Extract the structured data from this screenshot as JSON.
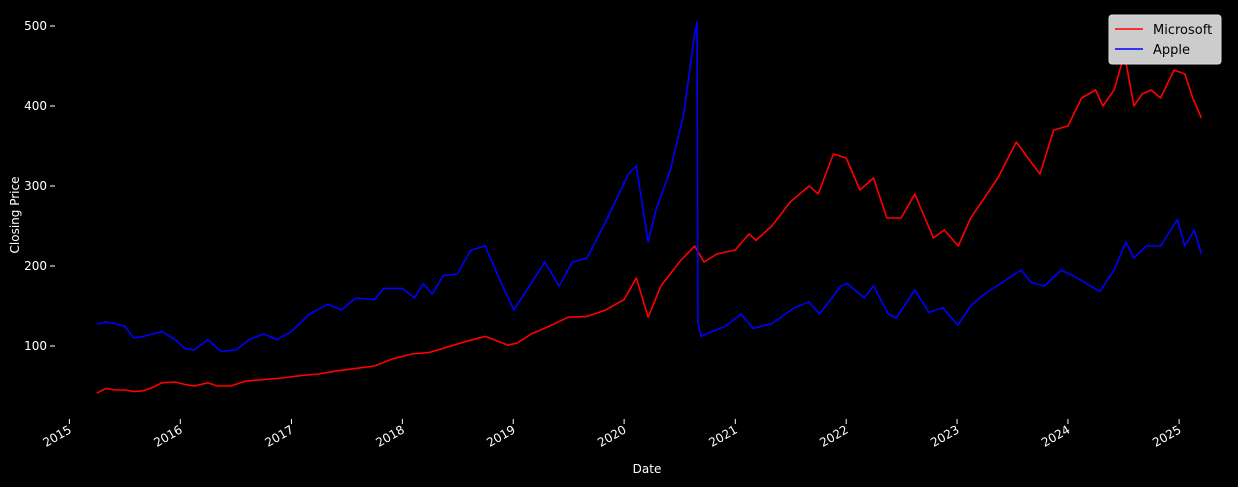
{
  "chart_data": {
    "type": "line",
    "xlabel": "Date",
    "ylabel": "Closing Price",
    "x_ticks": [
      "2015",
      "2016",
      "2017",
      "2018",
      "2019",
      "2020",
      "2021",
      "2022",
      "2023",
      "2024",
      "2025"
    ],
    "y_ticks": [
      100,
      200,
      300,
      400,
      500
    ],
    "ylim": [
      20,
      520
    ],
    "xlim": [
      "2014-12-01",
      "2025-06-01"
    ],
    "grid": false,
    "legend_position": "top-right",
    "background": "#000000",
    "series": [
      {
        "name": "Microsoft",
        "color": "#ff0000",
        "points": [
          [
            "2015-04-01",
            41
          ],
          [
            "2015-05-01",
            47
          ],
          [
            "2015-06-01",
            45
          ],
          [
            "2015-07-01",
            45
          ],
          [
            "2015-08-01",
            43
          ],
          [
            "2015-09-01",
            44
          ],
          [
            "2015-10-01",
            48
          ],
          [
            "2015-11-01",
            54
          ],
          [
            "2015-12-15",
            55
          ],
          [
            "2016-01-15",
            52
          ],
          [
            "2016-02-15",
            50
          ],
          [
            "2016-04-01",
            54
          ],
          [
            "2016-05-01",
            50
          ],
          [
            "2016-06-15",
            50
          ],
          [
            "2016-08-01",
            56
          ],
          [
            "2016-10-01",
            58
          ],
          [
            "2016-12-01",
            60
          ],
          [
            "2017-02-01",
            63
          ],
          [
            "2017-04-01",
            65
          ],
          [
            "2017-06-01",
            69
          ],
          [
            "2017-08-01",
            72
          ],
          [
            "2017-10-01",
            75
          ],
          [
            "2017-12-01",
            84
          ],
          [
            "2018-02-01",
            90
          ],
          [
            "2018-04-01",
            92
          ],
          [
            "2018-06-01",
            99
          ],
          [
            "2018-08-01",
            106
          ],
          [
            "2018-10-01",
            112
          ],
          [
            "2018-12-15",
            101
          ],
          [
            "2019-01-15",
            104
          ],
          [
            "2019-03-01",
            115
          ],
          [
            "2019-05-01",
            125
          ],
          [
            "2019-07-01",
            136
          ],
          [
            "2019-09-01",
            137
          ],
          [
            "2019-11-01",
            145
          ],
          [
            "2020-01-01",
            158
          ],
          [
            "2020-02-10",
            185
          ],
          [
            "2020-03-20",
            136
          ],
          [
            "2020-05-01",
            175
          ],
          [
            "2020-07-01",
            205
          ],
          [
            "2020-08-20",
            225
          ],
          [
            "2020-09-20",
            205
          ],
          [
            "2020-11-01",
            215
          ],
          [
            "2021-01-01",
            220
          ],
          [
            "2021-02-15",
            240
          ],
          [
            "2021-03-10",
            232
          ],
          [
            "2021-05-01",
            250
          ],
          [
            "2021-07-01",
            280
          ],
          [
            "2021-09-01",
            300
          ],
          [
            "2021-10-01",
            290
          ],
          [
            "2021-11-20",
            340
          ],
          [
            "2022-01-01",
            335
          ],
          [
            "2022-02-15",
            295
          ],
          [
            "2022-04-01",
            310
          ],
          [
            "2022-05-15",
            260
          ],
          [
            "2022-07-01",
            260
          ],
          [
            "2022-08-15",
            290
          ],
          [
            "2022-10-15",
            235
          ],
          [
            "2022-11-20",
            245
          ],
          [
            "2023-01-05",
            225
          ],
          [
            "2023-02-15",
            260
          ],
          [
            "2023-04-01",
            285
          ],
          [
            "2023-05-15",
            310
          ],
          [
            "2023-07-15",
            355
          ],
          [
            "2023-09-01",
            330
          ],
          [
            "2023-10-01",
            315
          ],
          [
            "2023-11-15",
            370
          ],
          [
            "2024-01-01",
            375
          ],
          [
            "2024-02-15",
            410
          ],
          [
            "2024-04-01",
            420
          ],
          [
            "2024-04-25",
            400
          ],
          [
            "2024-06-01",
            420
          ],
          [
            "2024-07-05",
            465
          ],
          [
            "2024-08-05",
            400
          ],
          [
            "2024-09-01",
            415
          ],
          [
            "2024-10-01",
            420
          ],
          [
            "2024-11-01",
            410
          ],
          [
            "2024-12-15",
            445
          ],
          [
            "2025-01-20",
            440
          ],
          [
            "2025-02-15",
            410
          ],
          [
            "2025-03-15",
            385
          ]
        ]
      },
      {
        "name": "Apple",
        "color": "#0000ff",
        "points": [
          [
            "2015-04-01",
            127
          ],
          [
            "2015-05-01",
            130
          ],
          [
            "2015-06-01",
            128
          ],
          [
            "2015-07-01",
            125
          ],
          [
            "2015-08-01",
            110
          ],
          [
            "2015-09-01",
            112
          ],
          [
            "2015-10-01",
            115
          ],
          [
            "2015-11-01",
            118
          ],
          [
            "2015-12-15",
            108
          ],
          [
            "2016-01-15",
            97
          ],
          [
            "2016-02-15",
            95
          ],
          [
            "2016-04-01",
            108
          ],
          [
            "2016-05-15",
            93
          ],
          [
            "2016-07-01",
            95
          ],
          [
            "2016-08-15",
            108
          ],
          [
            "2016-10-01",
            115
          ],
          [
            "2016-11-15",
            108
          ],
          [
            "2017-01-01",
            118
          ],
          [
            "2017-03-01",
            140
          ],
          [
            "2017-05-01",
            152
          ],
          [
            "2017-06-15",
            145
          ],
          [
            "2017-08-01",
            160
          ],
          [
            "2017-10-01",
            158
          ],
          [
            "2017-11-01",
            172
          ],
          [
            "2018-01-01",
            172
          ],
          [
            "2018-02-10",
            160
          ],
          [
            "2018-03-10",
            178
          ],
          [
            "2018-04-10",
            165
          ],
          [
            "2018-05-15",
            188
          ],
          [
            "2018-07-01",
            190
          ],
          [
            "2018-08-15",
            220
          ],
          [
            "2018-10-01",
            225
          ],
          [
            "2018-11-15",
            185
          ],
          [
            "2019-01-03",
            145
          ],
          [
            "2019-02-15",
            170
          ],
          [
            "2019-04-15",
            205
          ],
          [
            "2019-06-01",
            175
          ],
          [
            "2019-07-15",
            205
          ],
          [
            "2019-09-01",
            210
          ],
          [
            "2019-11-01",
            255
          ],
          [
            "2020-01-15",
            315
          ],
          [
            "2020-02-10",
            325
          ],
          [
            "2020-03-20",
            230
          ],
          [
            "2020-04-15",
            270
          ],
          [
            "2020-06-01",
            320
          ],
          [
            "2020-07-15",
            390
          ],
          [
            "2020-08-20",
            490
          ],
          [
            "2020-08-28",
            505
          ],
          [
            "2020-08-31",
            130
          ],
          [
            "2020-09-10",
            112
          ],
          [
            "2020-10-15",
            118
          ],
          [
            "2020-12-01",
            125
          ],
          [
            "2021-01-20",
            140
          ],
          [
            "2021-03-01",
            122
          ],
          [
            "2021-05-01",
            128
          ],
          [
            "2021-07-15",
            148
          ],
          [
            "2021-09-01",
            155
          ],
          [
            "2021-10-05",
            140
          ],
          [
            "2021-12-15",
            175
          ],
          [
            "2022-01-05",
            178
          ],
          [
            "2022-03-01",
            160
          ],
          [
            "2022-04-01",
            175
          ],
          [
            "2022-05-20",
            140
          ],
          [
            "2022-06-15",
            135
          ],
          [
            "2022-08-15",
            170
          ],
          [
            "2022-10-01",
            142
          ],
          [
            "2022-11-15",
            148
          ],
          [
            "2023-01-03",
            126
          ],
          [
            "2023-02-15",
            150
          ],
          [
            "2023-04-01",
            165
          ],
          [
            "2023-06-01",
            180
          ],
          [
            "2023-07-31",
            195
          ],
          [
            "2023-09-01",
            180
          ],
          [
            "2023-10-15",
            175
          ],
          [
            "2023-12-10",
            195
          ],
          [
            "2024-02-01",
            185
          ],
          [
            "2024-04-15",
            168
          ],
          [
            "2024-06-01",
            195
          ],
          [
            "2024-07-10",
            230
          ],
          [
            "2024-08-05",
            210
          ],
          [
            "2024-09-15",
            225
          ],
          [
            "2024-11-01",
            225
          ],
          [
            "2024-12-26",
            258
          ],
          [
            "2025-01-20",
            225
          ],
          [
            "2025-02-20",
            245
          ],
          [
            "2025-03-15",
            215
          ]
        ]
      }
    ]
  }
}
